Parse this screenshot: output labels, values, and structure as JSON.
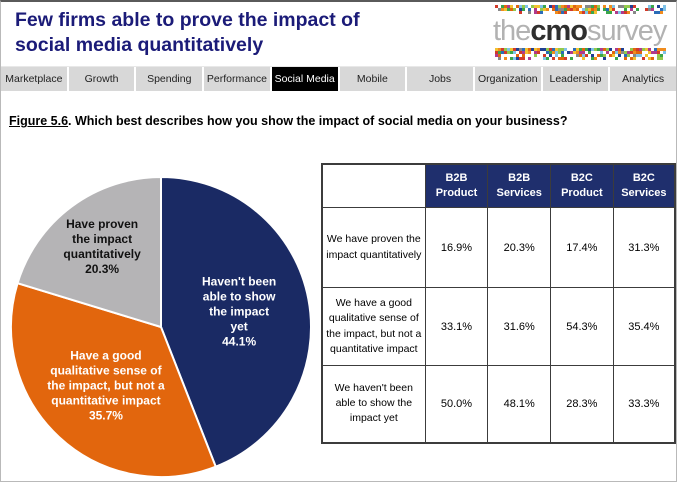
{
  "header": {
    "title_lines": [
      "Few firms able to prove the impact of",
      "social media quantitatively"
    ],
    "title_color": "#1b1b78",
    "logo": {
      "the": "the",
      "cmo": "cmo",
      "survey": "survey",
      "mosaic_palette": [
        "#2b6cb8",
        "#3aa64a",
        "#f2c230",
        "#e2660d",
        "#d23a2a",
        "#7fc3e8",
        "#94c94b",
        "#f08c1e",
        "#1f3f93",
        "#b03a8c",
        "#888888"
      ]
    }
  },
  "nav": {
    "tabs": [
      {
        "label": "Marketplace",
        "active": false
      },
      {
        "label": "Growth",
        "active": false
      },
      {
        "label": "Spending",
        "active": false
      },
      {
        "label": "Performance",
        "active": false
      },
      {
        "label": "Social Media",
        "active": true
      },
      {
        "label": "Mobile",
        "active": false
      },
      {
        "label": "Jobs",
        "active": false
      },
      {
        "label": "Organization",
        "active": false
      },
      {
        "label": "Leadership",
        "active": false
      },
      {
        "label": "Analytics",
        "active": false
      }
    ]
  },
  "caption": {
    "figure": "Figure 5.6",
    "text": ".  Which best describes how you show the impact of social media on your business?"
  },
  "chart_data": {
    "type": "pie",
    "title": "",
    "start_angle_deg": 0,
    "direction": "clockwise",
    "separator_color": "#ffffff",
    "slices": [
      {
        "label": "Haven't been able to show the impact yet",
        "label_lines": [
          "Haven't been",
          "able to show",
          "the impact",
          "yet"
        ],
        "value": 44.1,
        "display": "44.1%",
        "color": "#1a2a64",
        "text_color": "#ffffff",
        "label_radius": 0.53,
        "label_width": 118
      },
      {
        "label": "Have a good qualitative sense of the impact, but not a quantitative impact",
        "label_lines": [
          "Have a good",
          "qualitative sense of",
          "the impact, but not a",
          "quantitative impact"
        ],
        "value": 35.7,
        "display": "35.7%",
        "color": "#e2660d",
        "text_color": "#ffffff",
        "label_radius": 0.54,
        "label_width": 160
      },
      {
        "label": "Have proven the impact quantitatively",
        "label_lines": [
          "Have proven",
          "the impact",
          "quantitatively"
        ],
        "value": 20.3,
        "display": "20.3%",
        "color": "#b5b4b6",
        "text_color": "#111111",
        "label_radius": 0.66,
        "label_width": 125
      }
    ]
  },
  "table": {
    "header_bg": "#1f2f6d",
    "columns": [
      "B2B Product",
      "B2B Services",
      "B2C Product",
      "B2C Services"
    ],
    "rows": [
      {
        "label": "We have proven the impact quantitatively",
        "values": [
          "16.9%",
          "20.3%",
          "17.4%",
          "31.3%"
        ]
      },
      {
        "label": "We have a good qualitative sense of the impact, but not a quantitative impact",
        "values": [
          "33.1%",
          "31.6%",
          "54.3%",
          "35.4%"
        ]
      },
      {
        "label": "We haven't been able to show the impact yet",
        "values": [
          "50.0%",
          "48.1%",
          "28.3%",
          "33.3%"
        ]
      }
    ]
  }
}
